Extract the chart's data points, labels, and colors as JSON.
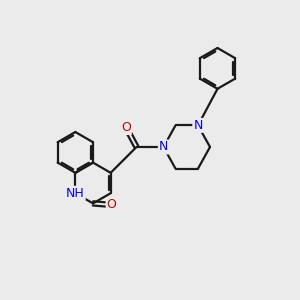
{
  "bg": "#ebebeb",
  "bc": "#1a1a1a",
  "nc": "#0000ff",
  "oc": "#cc0000",
  "lw": 1.6,
  "dbo": 0.05,
  "fs": 9.0,
  "xlim": [
    0,
    10
  ],
  "ylim": [
    0,
    10
  ]
}
